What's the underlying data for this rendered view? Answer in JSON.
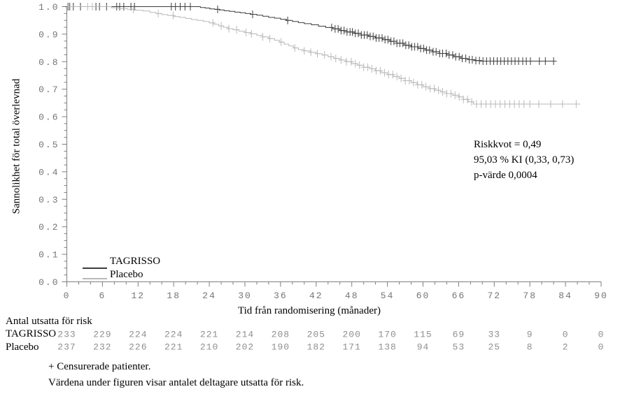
{
  "figure": {
    "footnotes": [
      "+ Censurerade patienter.",
      "Värdena under figuren visar antalet deltagare utsatta för risk."
    ]
  },
  "chart_data": {
    "type": "line",
    "subtype": "kaplan_meier_step_survival",
    "title": "",
    "xlabel": "Tid från randomisering (månader)",
    "ylabel": "Sannolikhet för total överlevnad",
    "xlim": [
      0,
      90
    ],
    "ylim": [
      0.0,
      1.0
    ],
    "x_major_ticks": [
      0,
      6,
      12,
      18,
      24,
      30,
      36,
      42,
      48,
      54,
      60,
      66,
      72,
      78,
      84,
      90
    ],
    "x_minor_tick_step": 2,
    "y_major_ticks": [
      0.0,
      0.1,
      0.2,
      0.3,
      0.4,
      0.5,
      0.6,
      0.7,
      0.8,
      0.9,
      1.0
    ],
    "y_minor_tick_step": 0.025,
    "grid": false,
    "legend_position": "inside-bottom-left",
    "censor_marker": "+",
    "axis_color": "#7f7f7f",
    "tick_label_color": "#757575",
    "risk_number_color": "#8f8f8f",
    "annotations": [
      "Riskkvot = 0,49",
      "95,03 % KI (0,33, 0,73)",
      "p-värde 0,0004"
    ],
    "series": [
      {
        "name": "TAGRISSO",
        "color": "#3c3c3c",
        "end_time": 82.5,
        "steps": [
          [
            0,
            1.0
          ],
          [
            22.5,
            0.997
          ],
          [
            23.3,
            0.995
          ],
          [
            24.1,
            0.992
          ],
          [
            24.9,
            0.99
          ],
          [
            25.7,
            0.988
          ],
          [
            26.5,
            0.985
          ],
          [
            27.4,
            0.983
          ],
          [
            28.3,
            0.98
          ],
          [
            29.2,
            0.978
          ],
          [
            30.1,
            0.975
          ],
          [
            31,
            0.972
          ],
          [
            32,
            0.969
          ],
          [
            33,
            0.965
          ],
          [
            34,
            0.961
          ],
          [
            35,
            0.958
          ],
          [
            36,
            0.954
          ],
          [
            37,
            0.95
          ],
          [
            38,
            0.946
          ],
          [
            39,
            0.942
          ],
          [
            40,
            0.938
          ],
          [
            41.2,
            0.934
          ],
          [
            42.4,
            0.929
          ],
          [
            43.6,
            0.924
          ],
          [
            44.8,
            0.919
          ],
          [
            46,
            0.913
          ],
          [
            47.2,
            0.908
          ],
          [
            48.4,
            0.903
          ],
          [
            49.6,
            0.897
          ],
          [
            50.8,
            0.892
          ],
          [
            52,
            0.886
          ],
          [
            53.2,
            0.88
          ],
          [
            54.4,
            0.874
          ],
          [
            55.6,
            0.867
          ],
          [
            56.8,
            0.86
          ],
          [
            58,
            0.854
          ],
          [
            59.2,
            0.848
          ],
          [
            60.4,
            0.842
          ],
          [
            61.6,
            0.836
          ],
          [
            62.8,
            0.83
          ],
          [
            64,
            0.824
          ],
          [
            65.2,
            0.818
          ],
          [
            66.4,
            0.812
          ],
          [
            67.6,
            0.807
          ],
          [
            68.8,
            0.804
          ],
          [
            69.6,
            0.802
          ]
        ],
        "censor_times": [
          0.2,
          0.5,
          1.1,
          2.3,
          4.9,
          5.5,
          6.7,
          8.4,
          8.9,
          9.6,
          10.8,
          11.4,
          17.6,
          18.3,
          19.1,
          19.9,
          20.8,
          25.4,
          31.3,
          37.2,
          44.6,
          45.2,
          45.7,
          46.2,
          46.7,
          47.2,
          47.7,
          48.1,
          48.6,
          49.1,
          49.6,
          50.1,
          50.6,
          51.1,
          51.6,
          52.1,
          52.6,
          53.1,
          53.6,
          54.1,
          54.6,
          55.1,
          55.6,
          56.1,
          56.6,
          57.1,
          57.6,
          58.1,
          58.6,
          59.1,
          59.6,
          60.1,
          60.6,
          61.1,
          61.7,
          62.2,
          62.8,
          63.3,
          63.9,
          64.4,
          65.0,
          65.5,
          66.1,
          66.6,
          67.2,
          67.8,
          68.3,
          68.9,
          69.5,
          70.1,
          70.7,
          71.3,
          71.9,
          72.5,
          73.1,
          73.7,
          74.3,
          74.9,
          75.5,
          76.1,
          76.8,
          77.4,
          78.1,
          79.6,
          80.6,
          82.0
        ]
      },
      {
        "name": "Placebo",
        "color": "#b9b9b9",
        "end_time": 86.5,
        "steps": [
          [
            0,
            1.0
          ],
          [
            7.5,
            0.996
          ],
          [
            8.8,
            0.993
          ],
          [
            10.2,
            0.99
          ],
          [
            11.6,
            0.987
          ],
          [
            12.8,
            0.984
          ],
          [
            14,
            0.979
          ],
          [
            15,
            0.975
          ],
          [
            16,
            0.971
          ],
          [
            17,
            0.968
          ],
          [
            18,
            0.964
          ],
          [
            19,
            0.961
          ],
          [
            20,
            0.957
          ],
          [
            21,
            0.953
          ],
          [
            22,
            0.95
          ],
          [
            23,
            0.946
          ],
          [
            24,
            0.941
          ],
          [
            24.8,
            0.936
          ],
          [
            25.6,
            0.93
          ],
          [
            26.4,
            0.925
          ],
          [
            27.2,
            0.92
          ],
          [
            28,
            0.916
          ],
          [
            29,
            0.911
          ],
          [
            30,
            0.906
          ],
          [
            31,
            0.901
          ],
          [
            32,
            0.896
          ],
          [
            33,
            0.89
          ],
          [
            34,
            0.884
          ],
          [
            35,
            0.878
          ],
          [
            35.8,
            0.871
          ],
          [
            36.6,
            0.864
          ],
          [
            37.4,
            0.857
          ],
          [
            38.2,
            0.85
          ],
          [
            39,
            0.844
          ],
          [
            40,
            0.839
          ],
          [
            41,
            0.834
          ],
          [
            42,
            0.829
          ],
          [
            43,
            0.824
          ],
          [
            44,
            0.818
          ],
          [
            45,
            0.812
          ],
          [
            46,
            0.806
          ],
          [
            47,
            0.8
          ],
          [
            48,
            0.793
          ],
          [
            49,
            0.787
          ],
          [
            50,
            0.78
          ],
          [
            51,
            0.774
          ],
          [
            52,
            0.767
          ],
          [
            53,
            0.76
          ],
          [
            54,
            0.753
          ],
          [
            55,
            0.746
          ],
          [
            56,
            0.739
          ],
          [
            57,
            0.731
          ],
          [
            58,
            0.724
          ],
          [
            59,
            0.716
          ],
          [
            60,
            0.709
          ],
          [
            61,
            0.702
          ],
          [
            62,
            0.696
          ],
          [
            63,
            0.69
          ],
          [
            64,
            0.684
          ],
          [
            65,
            0.678
          ],
          [
            66,
            0.672
          ],
          [
            66.8,
            0.663
          ],
          [
            67.6,
            0.654
          ],
          [
            68.5,
            0.646
          ]
        ],
        "censor_times": [
          3.5,
          4.3,
          11.2,
          15.4,
          17.9,
          24.6,
          26.0,
          27.3,
          28.6,
          30.2,
          31.1,
          33.0,
          34.2,
          36.1,
          38.4,
          40.0,
          41.1,
          42.2,
          43.4,
          44.5,
          45.3,
          46.2,
          47.1,
          47.9,
          48.6,
          49.3,
          50.0,
          50.7,
          51.4,
          52.1,
          52.8,
          53.5,
          54.2,
          54.9,
          55.6,
          56.3,
          57.0,
          57.7,
          58.4,
          59.1,
          59.8,
          60.5,
          61.2,
          61.9,
          62.6,
          63.3,
          64.0,
          64.7,
          65.4,
          66.1,
          66.8,
          67.5,
          68.2,
          69.0,
          69.8,
          70.6,
          71.4,
          72.2,
          73.0,
          73.8,
          74.6,
          75.4,
          76.2,
          77.0,
          78.0,
          79.5,
          81.5,
          83.5,
          85.8
        ]
      }
    ],
    "risk_table": {
      "header": "Antal utsatta för risk",
      "times": [
        0,
        6,
        12,
        18,
        24,
        30,
        36,
        42,
        48,
        54,
        60,
        66,
        72,
        78,
        84,
        90
      ],
      "rows": [
        {
          "label": "TAGRISSO",
          "values": [
            233,
            229,
            224,
            224,
            221,
            214,
            208,
            205,
            200,
            170,
            115,
            69,
            33,
            9,
            0,
            0
          ]
        },
        {
          "label": "Placebo",
          "values": [
            237,
            232,
            226,
            221,
            210,
            202,
            190,
            182,
            171,
            138,
            94,
            53,
            25,
            8,
            2,
            0
          ]
        }
      ]
    }
  }
}
